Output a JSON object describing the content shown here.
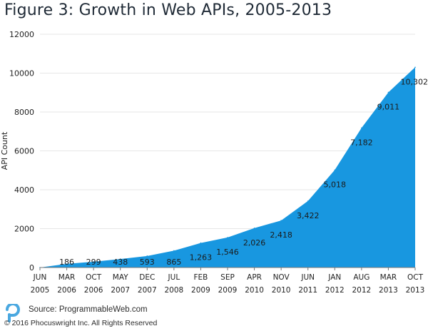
{
  "page": {
    "title": "Figure 3: Growth in Web APIs, 2005-2013",
    "source": "Source: ProgrammableWeb.com",
    "copyright": "© 2016 Phocuswright Inc. All Rights Reserved",
    "logo_icon": "phocuswright-p-logo-icon"
  },
  "colors": {
    "area_fill": "#1897e0",
    "logo": "#4aa8e0",
    "grid": "#e6e6e6",
    "axis": "#777777",
    "text": "#222222"
  },
  "chart_data": {
    "type": "area",
    "title": "Figure 3: Growth in Web APIs, 2005-2013",
    "ylabel": "API Count",
    "xlabel": "",
    "ylim": [
      0,
      12000
    ],
    "yticks": [
      0,
      2000,
      4000,
      6000,
      8000,
      10000,
      12000
    ],
    "ytick_labels": [
      "0",
      "2000",
      "4000",
      "6000",
      "8000",
      "10000",
      "12000"
    ],
    "grid": true,
    "categories": [
      [
        "JUN",
        "2005"
      ],
      [
        "MAR",
        "2006"
      ],
      [
        "OCT",
        "2006"
      ],
      [
        "MAY",
        "2007"
      ],
      [
        "DEC",
        "2007"
      ],
      [
        "JUL",
        "2008"
      ],
      [
        "FEB",
        "2009"
      ],
      [
        "SEP",
        "2009"
      ],
      [
        "APR",
        "2010"
      ],
      [
        "NOV",
        "2010"
      ],
      [
        "JUN",
        "2011"
      ],
      [
        "JAN",
        "2012"
      ],
      [
        "AUG",
        "2012"
      ],
      [
        "MAR",
        "2013"
      ],
      [
        "OCT",
        "2013"
      ]
    ],
    "series": [
      {
        "values": [
          0,
          186,
          299,
          438,
          593,
          865,
          1263,
          1546,
          2026,
          2418,
          3422,
          5018,
          7182,
          9011,
          10302
        ],
        "labels": [
          "",
          "186",
          "299",
          "438",
          "593",
          "865",
          "1,263",
          "1,546",
          "2,026",
          "2,418",
          "3,422",
          "5,018",
          "7,182",
          "9,011",
          "10,302"
        ]
      }
    ]
  }
}
